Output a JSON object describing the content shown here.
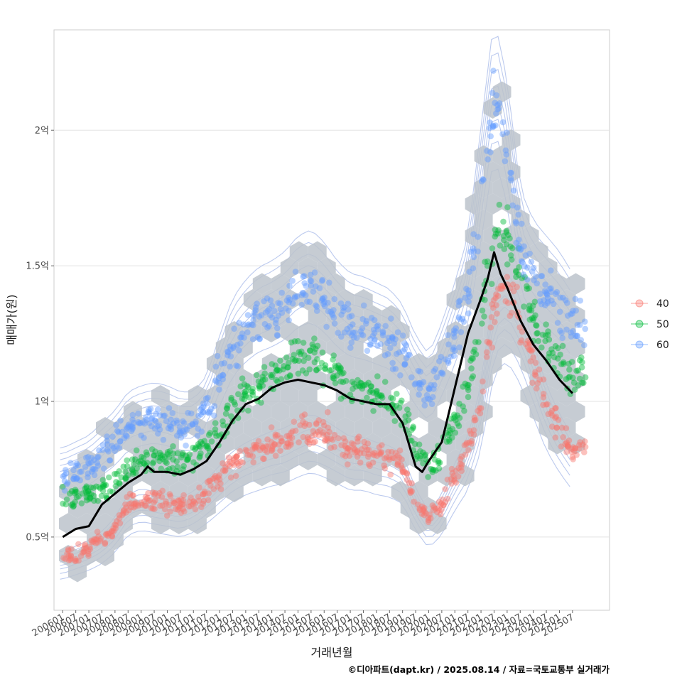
{
  "chart_data": {
    "type": "scatter",
    "xlabel": "거래년월",
    "ylabel": "매매가(원)",
    "caption": "©디아파트(dapt.kr) / 2025.08.14 / 자료=국토교통부 실거래가",
    "x_tick_labels": [
      "200601",
      "200607",
      "200701",
      "200707",
      "200801",
      "200807",
      "200901",
      "200907",
      "201001",
      "201007",
      "201101",
      "201107",
      "201201",
      "201207",
      "201301",
      "201307",
      "201401",
      "201407",
      "201501",
      "201507",
      "201601",
      "201607",
      "201701",
      "201707",
      "201801",
      "201807",
      "201901",
      "201907",
      "202001",
      "202007",
      "202101",
      "202107",
      "202201",
      "202207",
      "202301",
      "202307",
      "202401",
      "202407",
      "202501",
      "202507"
    ],
    "y_ticks": [
      {
        "value": 50000000,
        "label": "0.5억"
      },
      {
        "value": 100000000,
        "label": "1억"
      },
      {
        "value": 150000000,
        "label": "1.5억"
      },
      {
        "value": 200000000,
        "label": "2억"
      }
    ],
    "xlim": [
      "2005-09",
      "2026-12"
    ],
    "ylim": [
      23000000,
      237000000
    ],
    "grid": true,
    "legend_position": "right",
    "colors": {
      "40": "#f8766d",
      "50": "#00ba38",
      "60": "#619cff",
      "trend": "#000000",
      "hex": "#bcc3cb",
      "contour": "#b5c4ec"
    },
    "series": [
      {
        "name": "40",
        "color": "#f8766d",
        "x": [
          "2006-01",
          "2006-07",
          "2007-01",
          "2007-07",
          "2008-01",
          "2008-07",
          "2009-01",
          "2009-07",
          "2010-01",
          "2010-07",
          "2011-01",
          "2011-07",
          "2012-01",
          "2012-07",
          "2013-01",
          "2013-07",
          "2014-01",
          "2014-07",
          "2015-01",
          "2015-07",
          "2016-01",
          "2016-07",
          "2017-01",
          "2017-07",
          "2018-01",
          "2018-07",
          "2019-01",
          "2019-07",
          "2020-01",
          "2020-07",
          "2021-01",
          "2021-07",
          "2022-01",
          "2022-07",
          "2023-01",
          "2023-07",
          "2024-01",
          "2024-07",
          "2025-01",
          "2025-07"
        ],
        "y": [
          42000000,
          44000000,
          46000000,
          49000000,
          54000000,
          62000000,
          64000000,
          63000000,
          62000000,
          61000000,
          63000000,
          67000000,
          72000000,
          77000000,
          80000000,
          82000000,
          84000000,
          85000000,
          88000000,
          90000000,
          88000000,
          85000000,
          82000000,
          82000000,
          80000000,
          79000000,
          76000000,
          64000000,
          56000000,
          62000000,
          73000000,
          82000000,
          100000000,
          135000000,
          140000000,
          130000000,
          115000000,
          100000000,
          90000000,
          82000000
        ]
      },
      {
        "name": "50",
        "color": "#00ba38",
        "x": [
          "2006-01",
          "2006-07",
          "2007-01",
          "2007-07",
          "2008-01",
          "2008-07",
          "2009-01",
          "2009-07",
          "2010-01",
          "2010-07",
          "2011-01",
          "2011-07",
          "2012-01",
          "2012-07",
          "2013-01",
          "2013-07",
          "2014-01",
          "2014-07",
          "2015-01",
          "2015-07",
          "2016-01",
          "2016-07",
          "2017-01",
          "2017-07",
          "2018-01",
          "2018-07",
          "2019-01",
          "2019-07",
          "2020-01",
          "2020-07",
          "2021-01",
          "2021-07",
          "2022-01",
          "2022-07",
          "2023-01",
          "2023-07",
          "2024-01",
          "2024-07",
          "2025-01",
          "2025-07"
        ],
        "y": [
          64000000,
          65000000,
          66000000,
          67000000,
          70000000,
          75000000,
          77000000,
          79000000,
          79000000,
          78000000,
          79000000,
          83000000,
          90000000,
          98000000,
          102000000,
          106000000,
          110000000,
          112000000,
          117000000,
          118000000,
          114000000,
          110000000,
          106000000,
          104000000,
          102000000,
          100000000,
          96000000,
          84000000,
          76000000,
          82000000,
          92000000,
          105000000,
          130000000,
          160000000,
          160000000,
          145000000,
          130000000,
          120000000,
          115000000,
          110000000
        ]
      },
      {
        "name": "60",
        "color": "#619cff",
        "x": [
          "2006-01",
          "2006-07",
          "2007-01",
          "2007-07",
          "2008-01",
          "2008-07",
          "2009-01",
          "2009-07",
          "2010-01",
          "2010-07",
          "2011-01",
          "2011-07",
          "2012-01",
          "2012-07",
          "2013-01",
          "2013-07",
          "2014-01",
          "2014-07",
          "2015-01",
          "2015-07",
          "2016-01",
          "2016-07",
          "2017-01",
          "2017-07",
          "2018-01",
          "2018-07",
          "2019-01",
          "2019-07",
          "2020-01",
          "2020-07",
          "2021-01",
          "2021-07",
          "2022-01",
          "2022-07",
          "2023-01",
          "2023-07",
          "2024-01",
          "2024-07",
          "2025-01",
          "2025-07"
        ],
        "y": [
          72000000,
          74000000,
          76000000,
          80000000,
          84000000,
          90000000,
          92000000,
          93000000,
          92000000,
          90000000,
          90000000,
          95000000,
          108000000,
          120000000,
          126000000,
          130000000,
          132000000,
          135000000,
          140000000,
          142000000,
          138000000,
          132000000,
          128000000,
          127000000,
          125000000,
          123000000,
          118000000,
          108000000,
          102000000,
          112000000,
          125000000,
          140000000,
          175000000,
          210000000,
          190000000,
          155000000,
          145000000,
          140000000,
          135000000,
          128000000
        ]
      },
      {
        "name": "trend",
        "color": "#000000",
        "x": [
          "2006-01",
          "2006-07",
          "2007-01",
          "2007-04",
          "2007-07",
          "2008-01",
          "2008-07",
          "2009-01",
          "2009-04",
          "2009-07",
          "2010-01",
          "2010-07",
          "2011-01",
          "2011-07",
          "2012-01",
          "2012-07",
          "2013-01",
          "2013-07",
          "2014-01",
          "2014-07",
          "2015-01",
          "2015-07",
          "2016-01",
          "2016-07",
          "2017-01",
          "2017-07",
          "2018-01",
          "2018-07",
          "2019-01",
          "2019-07",
          "2019-10",
          "2020-01",
          "2020-07",
          "2021-01",
          "2021-07",
          "2022-01",
          "2022-04",
          "2022-07",
          "2022-10",
          "2023-01",
          "2023-07",
          "2024-01",
          "2024-07",
          "2025-01",
          "2025-07"
        ],
        "y": [
          50000000,
          53000000,
          54000000,
          58000000,
          62000000,
          66000000,
          70000000,
          73000000,
          76000000,
          74000000,
          74000000,
          73000000,
          75000000,
          78000000,
          85000000,
          93000000,
          99000000,
          101000000,
          105000000,
          107000000,
          108000000,
          107000000,
          106000000,
          104000000,
          101000000,
          100000000,
          99000000,
          99000000,
          92000000,
          76000000,
          74000000,
          78000000,
          85000000,
          105000000,
          125000000,
          138000000,
          145000000,
          155000000,
          147000000,
          142000000,
          130000000,
          121000000,
          115000000,
          108000000,
          103000000
        ]
      }
    ]
  }
}
